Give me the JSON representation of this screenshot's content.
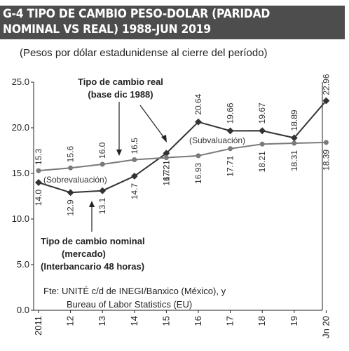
{
  "header": {
    "title_line1": "G-4 TIPO DE CAMBIO PESO-DOLAR (PARIDAD",
    "title_line2": "NOMINAL VS REAL) 1988-JUN 2019",
    "subtitle": "(Pesos por dólar estadunidense al cierre del período)"
  },
  "colors": {
    "title_bg": "#4d4d4d",
    "series_nominal": "#333333",
    "series_real": "#7a7a7a"
  },
  "chart_data": {
    "type": "line",
    "title": "G-4 TIPO DE CAMBIO PESO-DOLAR (PARIDAD NOMINAL VS REAL) 1988-JUN 2019",
    "subtitle": "(Pesos por dólar estadunidense al cierre del período)",
    "categories": [
      "2011",
      "12",
      "13",
      "14",
      "15",
      "16",
      "17",
      "18",
      "19",
      "Jn 20"
    ],
    "y_ticks": [
      "0.0",
      "5.0",
      "10.0",
      "15.0",
      "20.0",
      "25.0"
    ],
    "ylim": [
      0,
      25
    ],
    "grid": false,
    "series": [
      {
        "name": "Tipo de cambio nominal (mercado) (Interbancario 48 horas)",
        "values": [
          14.0,
          12.9,
          13.1,
          14.7,
          17.21,
          20.64,
          19.66,
          19.67,
          18.89,
          22.96
        ],
        "labels": [
          "14.0",
          "12.9",
          "13.1",
          "14.7",
          "17.21",
          "20.64",
          "19.66",
          "19.67",
          "18.89",
          "22.96"
        ]
      },
      {
        "name": "Tipo de cambio real (base dic 1988)",
        "values": [
          15.3,
          15.6,
          16.0,
          16.5,
          16.72,
          16.93,
          17.71,
          18.21,
          18.31,
          18.39
        ],
        "labels": [
          "15.3",
          "15.6",
          "16.0",
          "16.5",
          "16.72",
          "16.93",
          "17.71",
          "18.21",
          "18.31",
          "18.39"
        ]
      }
    ],
    "annotations": {
      "real_label_1": "Tipo de cambio real",
      "real_label_2": "(base dic 1988)",
      "nominal_label_1": "Tipo de cambio nominal",
      "nominal_label_2": "(mercado)",
      "nominal_label_3": "(Interbancario 48 horas)",
      "sobre": "(Sobrevaluación)",
      "sub": "(Subvaluación)"
    },
    "source_line1": "Fte: UNITÉ c/d de INEGI/Banxico (México), y",
    "source_line2": "Bureau of Labor Statistics (EU)"
  }
}
